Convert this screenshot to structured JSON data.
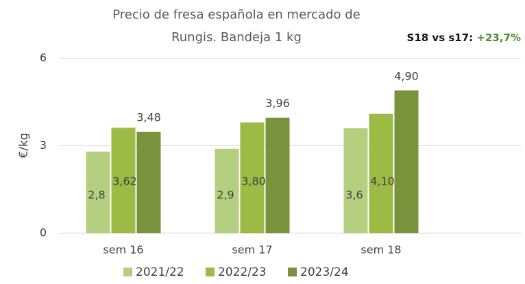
{
  "chart_data": {
    "type": "bar",
    "title": [
      "Precio de fresa española en mercado de",
      "Rungis. Bandeja 1 kg"
    ],
    "annotation": {
      "label": "S18 vs s17:",
      "value": "+23,7%"
    },
    "y_label": "€/kg",
    "categories": [
      "sem 16",
      "sem 17",
      "sem 18"
    ],
    "series": [
      {
        "name": "2021/22",
        "color": "#b5cf80",
        "values": [
          2.8,
          2.9,
          3.6
        ],
        "value_labels": [
          "2,8",
          "2,9",
          "3,6"
        ]
      },
      {
        "name": "2022/23",
        "color": "#9bbb45",
        "values": [
          3.62,
          3.8,
          4.1
        ],
        "value_labels": [
          "3,62",
          "3,80",
          "4,10"
        ]
      },
      {
        "name": "2023/24",
        "color": "#77933c",
        "values": [
          3.48,
          3.96,
          4.9
        ],
        "value_labels": [
          "3,48",
          "3,96",
          "4,90"
        ]
      }
    ],
    "ylim": [
      0,
      6
    ],
    "yticks": [
      0,
      3,
      6
    ],
    "grid": true,
    "legend": "bottom"
  }
}
